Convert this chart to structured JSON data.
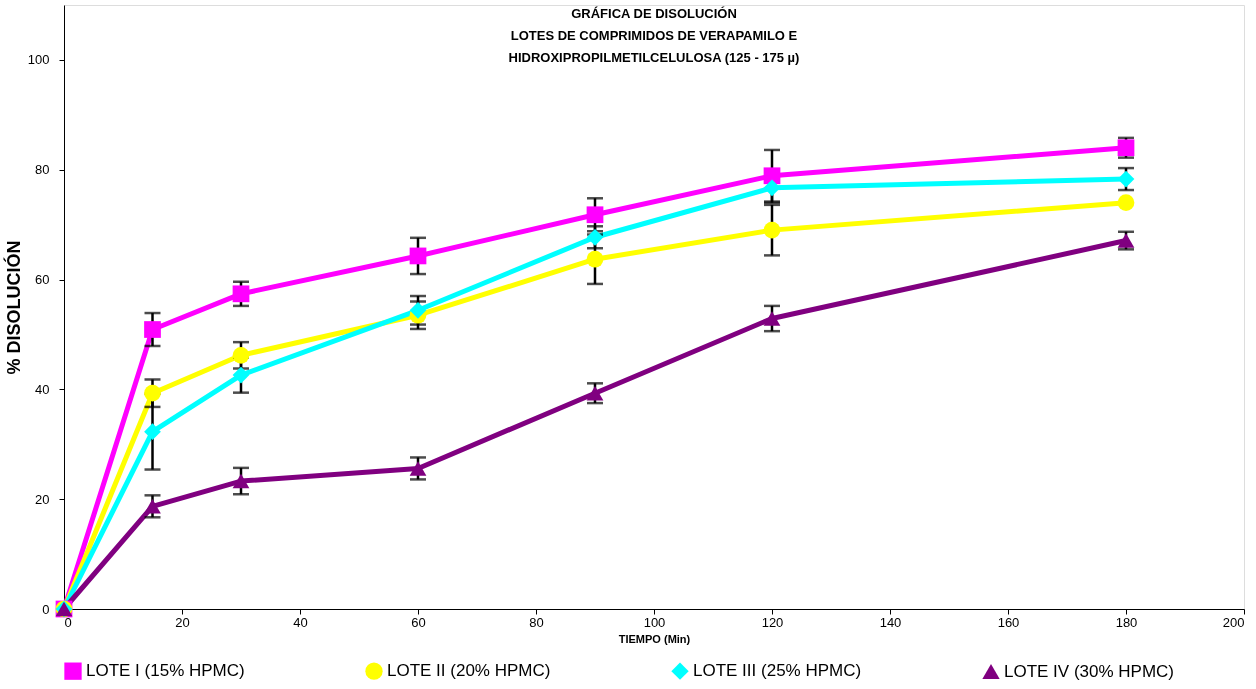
{
  "chart_data": {
    "type": "line",
    "title": [
      "GRÁFICA DE DISOLUCIÓN",
      "LOTES DE COMPRIMIDOS DE VERAPAMILO E",
      "HIDROXIPROPILMETILCELULOSA (125 - 175 µ)"
    ],
    "xlabel": "TIEMPO (Min)",
    "ylabel": "% DISOLUCIÓN",
    "x": [
      0,
      15,
      30,
      60,
      90,
      120,
      180
    ],
    "series": [
      {
        "name": "LOTE I (15% HPMC)",
        "color": "#ff00ff",
        "marker": "square",
        "values": [
          0,
          50.9,
          57.4,
          64.3,
          71.8,
          78.9,
          84.0
        ],
        "errors": [
          null,
          3,
          2.2,
          3.3,
          3,
          4.7,
          1.8
        ]
      },
      {
        "name": "LOTE II (20% HPMC)",
        "color": "#ffff00",
        "marker": "circle",
        "values": [
          0,
          39.3,
          46.2,
          53.5,
          63.7,
          69.0,
          74.0
        ],
        "errors": [
          null,
          2.5,
          2.4,
          2.5,
          4.5,
          4.6,
          null
        ]
      },
      {
        "name": "LOTE III (25% HPMC)",
        "color": "#00ffff",
        "marker": "diamond",
        "values": [
          0,
          32.3,
          42.6,
          54.4,
          67.7,
          76.7,
          78.3
        ],
        "errors": [
          null,
          6.9,
          3.2,
          2.6,
          2,
          2.7,
          2
        ]
      },
      {
        "name": "LOTE IV (30% HPMC)",
        "color": "#800080",
        "marker": "triangle",
        "values": [
          0,
          18.7,
          23.3,
          25.6,
          39.3,
          52.9,
          67.1
        ],
        "errors": [
          null,
          2,
          2.4,
          2,
          1.8,
          2.3,
          1.6
        ]
      }
    ],
    "xlim": [
      0,
      200
    ],
    "xticks": [
      0,
      20,
      40,
      60,
      80,
      100,
      120,
      140,
      160,
      180,
      200
    ],
    "ylim": [
      0,
      110
    ],
    "yticks": [
      0,
      20,
      40,
      60,
      80,
      100
    ],
    "grid": false,
    "legend": "bottom",
    "line_style": "solid"
  }
}
